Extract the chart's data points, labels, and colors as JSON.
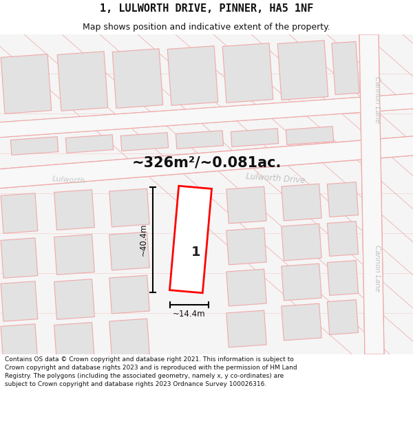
{
  "title": "1, LULWORTH DRIVE, PINNER, HA5 1NF",
  "subtitle": "Map shows position and indicative extent of the property.",
  "area_text": "~326m²/~0.081ac.",
  "label_number": "1",
  "dim_height": "~40.4m",
  "dim_width": "~14.4m",
  "street_label_upper": "Lulworth",
  "street_label_lower": "Lulworth Drive",
  "road_label_right_upper": "Cannon Lane",
  "road_label_right_lower": "Cannon Lane",
  "footer_text": "Contains OS data © Crown copyright and database right 2021. This information is subject to Crown copyright and database rights 2023 and is reproduced with the permission of HM Land Registry. The polygons (including the associated geometry, namely x, y co-ordinates) are subject to Crown copyright and database rights 2023 Ordnance Survey 100026316.",
  "bg_color": "#ffffff",
  "map_bg": "#f5f5f5",
  "block_color": "#e2e2e2",
  "block_edge_color": "#f0a8a8",
  "road_fill": "#f8f8f8",
  "road_edge": "#f0a8a8",
  "highlight_color": "#ff0000",
  "highlight_fill": "#ffffff",
  "street_label_color": "#c0c0c0",
  "text_color": "#111111",
  "title_font": "DejaVu Sans",
  "footer_fontsize": 6.5,
  "title_fontsize": 11,
  "subtitle_fontsize": 9
}
